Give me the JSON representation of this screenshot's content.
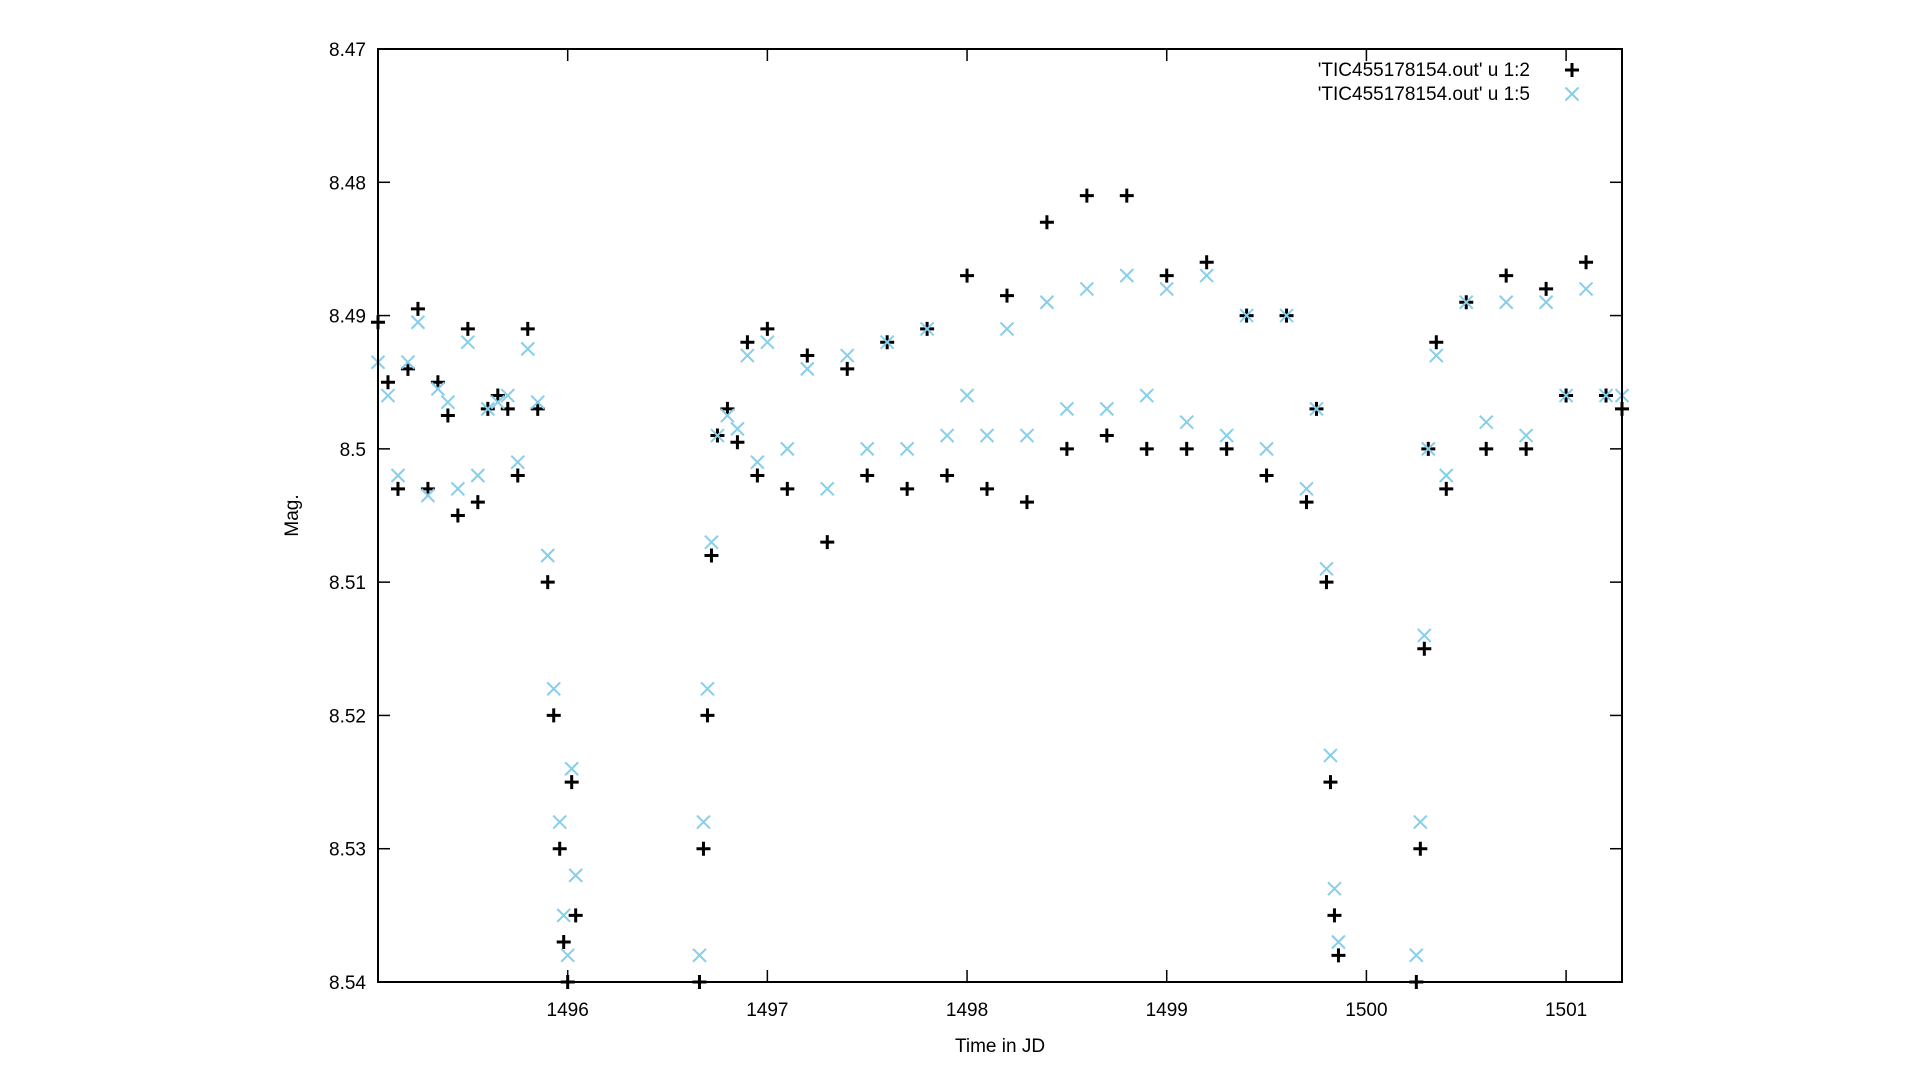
{
  "chart_data": {
    "type": "scatter",
    "xlabel": "Time in JD",
    "ylabel": "Mag.",
    "xlim": [
      1495.05,
      1501.28
    ],
    "ylim": [
      8.47,
      8.54
    ],
    "y_inverted": true,
    "x_ticks": [
      "1496",
      "1497",
      "1498",
      "1499",
      "1500",
      "1501"
    ],
    "x_tick_values": [
      1496,
      1497,
      1498,
      1499,
      1500,
      1501
    ],
    "y_ticks": [
      "8.47",
      "8.48",
      "8.49",
      "8.5",
      "8.51",
      "8.52",
      "8.53",
      "8.54"
    ],
    "y_tick_values": [
      8.47,
      8.48,
      8.49,
      8.5,
      8.51,
      8.52,
      8.53,
      8.54
    ],
    "grid": false,
    "legend_position": "top-right",
    "series": [
      {
        "name": "'TIC455178154.out' u 1:2",
        "marker": "plus",
        "color": "#000000",
        "x": [
          1495.05,
          1495.1,
          1495.15,
          1495.2,
          1495.25,
          1495.3,
          1495.35,
          1495.4,
          1495.45,
          1495.5,
          1495.55,
          1495.6,
          1495.65,
          1495.7,
          1495.75,
          1495.8,
          1495.85,
          1495.9,
          1495.93,
          1495.96,
          1495.98,
          1496.0,
          1496.02,
          1496.04,
          1496.66,
          1496.68,
          1496.7,
          1496.72,
          1496.75,
          1496.8,
          1496.85,
          1496.9,
          1496.95,
          1497.0,
          1497.1,
          1497.2,
          1497.3,
          1497.4,
          1497.5,
          1497.6,
          1497.7,
          1497.8,
          1497.9,
          1498.0,
          1498.1,
          1498.2,
          1498.3,
          1498.4,
          1498.5,
          1498.6,
          1498.7,
          1498.8,
          1498.9,
          1499.0,
          1499.1,
          1499.2,
          1499.3,
          1499.4,
          1499.5,
          1499.6,
          1499.7,
          1499.75,
          1499.8,
          1499.82,
          1499.84,
          1499.86,
          1500.25,
          1500.27,
          1500.29,
          1500.31,
          1500.35,
          1500.4,
          1500.5,
          1500.6,
          1500.7,
          1500.8,
          1500.9,
          1501.0,
          1501.1,
          1501.2,
          1501.28
        ],
        "y": [
          8.4905,
          8.495,
          8.503,
          8.494,
          8.4895,
          8.503,
          8.495,
          8.4975,
          8.505,
          8.491,
          8.504,
          8.497,
          8.496,
          8.497,
          8.502,
          8.491,
          8.497,
          8.51,
          8.52,
          8.53,
          8.537,
          8.54,
          8.525,
          8.535,
          8.54,
          8.53,
          8.52,
          8.508,
          8.499,
          8.497,
          8.4995,
          8.492,
          8.502,
          8.491,
          8.503,
          8.493,
          8.507,
          8.494,
          8.502,
          8.492,
          8.503,
          8.491,
          8.502,
          8.487,
          8.503,
          8.4885,
          8.504,
          8.483,
          8.5,
          8.481,
          8.499,
          8.481,
          8.5,
          8.487,
          8.5,
          8.486,
          8.5,
          8.49,
          8.502,
          8.49,
          8.504,
          8.497,
          8.51,
          8.525,
          8.535,
          8.538,
          8.54,
          8.53,
          8.515,
          8.5,
          8.492,
          8.503,
          8.489,
          8.5,
          8.487,
          8.5,
          8.488,
          8.496,
          8.486,
          8.496,
          8.497
        ]
      },
      {
        "name": "'TIC455178154.out' u 1:5",
        "marker": "cross",
        "color": "#87ceeb",
        "x": [
          1495.05,
          1495.1,
          1495.15,
          1495.2,
          1495.25,
          1495.3,
          1495.35,
          1495.4,
          1495.45,
          1495.5,
          1495.55,
          1495.6,
          1495.65,
          1495.7,
          1495.75,
          1495.8,
          1495.85,
          1495.9,
          1495.93,
          1495.96,
          1495.98,
          1496.0,
          1496.02,
          1496.04,
          1496.66,
          1496.68,
          1496.7,
          1496.72,
          1496.75,
          1496.8,
          1496.85,
          1496.9,
          1496.95,
          1497.0,
          1497.1,
          1497.2,
          1497.3,
          1497.4,
          1497.5,
          1497.6,
          1497.7,
          1497.8,
          1497.9,
          1498.0,
          1498.1,
          1498.2,
          1498.3,
          1498.4,
          1498.5,
          1498.6,
          1498.7,
          1498.8,
          1498.9,
          1499.0,
          1499.1,
          1499.2,
          1499.3,
          1499.4,
          1499.5,
          1499.6,
          1499.7,
          1499.75,
          1499.8,
          1499.82,
          1499.84,
          1499.86,
          1500.25,
          1500.27,
          1500.29,
          1500.31,
          1500.35,
          1500.4,
          1500.5,
          1500.6,
          1500.7,
          1500.8,
          1500.9,
          1501.0,
          1501.1,
          1501.2,
          1501.28
        ],
        "y": [
          8.4935,
          8.496,
          8.502,
          8.4935,
          8.4905,
          8.5035,
          8.4955,
          8.4965,
          8.503,
          8.492,
          8.502,
          8.497,
          8.4965,
          8.496,
          8.501,
          8.4925,
          8.4965,
          8.508,
          8.518,
          8.528,
          8.535,
          8.538,
          8.524,
          8.532,
          8.538,
          8.528,
          8.518,
          8.507,
          8.499,
          8.4975,
          8.4985,
          8.493,
          8.501,
          8.492,
          8.5,
          8.494,
          8.503,
          8.493,
          8.5,
          8.492,
          8.5,
          8.491,
          8.499,
          8.496,
          8.499,
          8.491,
          8.499,
          8.489,
          8.497,
          8.488,
          8.497,
          8.487,
          8.496,
          8.488,
          8.498,
          8.487,
          8.499,
          8.49,
          8.5,
          8.49,
          8.503,
          8.497,
          8.509,
          8.523,
          8.533,
          8.537,
          8.538,
          8.528,
          8.514,
          8.5,
          8.493,
          8.502,
          8.489,
          8.498,
          8.489,
          8.499,
          8.489,
          8.496,
          8.488,
          8.496,
          8.496
        ]
      }
    ]
  }
}
